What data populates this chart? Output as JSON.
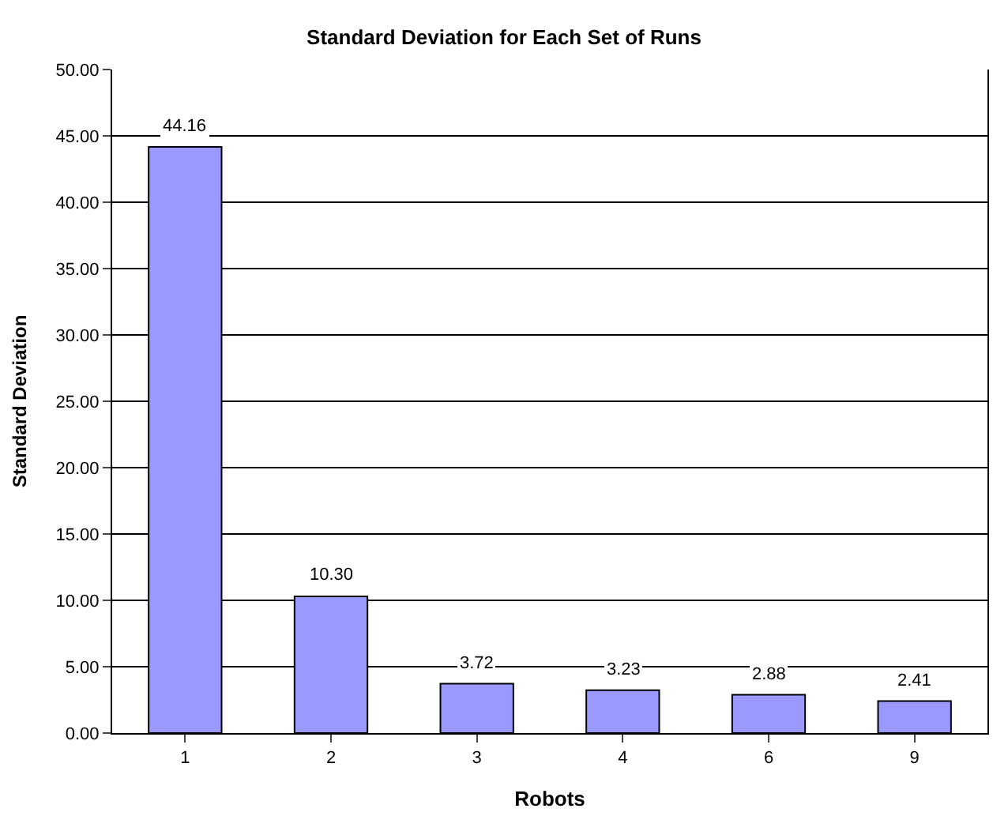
{
  "chart_data": {
    "type": "bar",
    "title": "Standard Deviation for Each Set of Runs",
    "xlabel": "Robots",
    "ylabel": "Standard Deviation",
    "categories": [
      "1",
      "2",
      "3",
      "4",
      "6",
      "9"
    ],
    "values": [
      44.16,
      10.3,
      3.72,
      3.23,
      2.88,
      2.41
    ],
    "value_labels": [
      "44.16",
      "10.30",
      "3.72",
      "3.23",
      "2.88",
      "2.41"
    ],
    "color": "#9999ff",
    "ylim": [
      0,
      50
    ],
    "yticks": [
      {
        "value": 0,
        "label": "0.00"
      },
      {
        "value": 5,
        "label": "5.00"
      },
      {
        "value": 10,
        "label": "10.00"
      },
      {
        "value": 15,
        "label": "15.00"
      },
      {
        "value": 20,
        "label": "20.00"
      },
      {
        "value": 25,
        "label": "25.00"
      },
      {
        "value": 30,
        "label": "30.00"
      },
      {
        "value": 35,
        "label": "35.00"
      },
      {
        "value": 40,
        "label": "40.00"
      },
      {
        "value": 45,
        "label": "45.00"
      },
      {
        "value": 50,
        "label": "50.00"
      }
    ],
    "grid": "y",
    "legend": false
  }
}
